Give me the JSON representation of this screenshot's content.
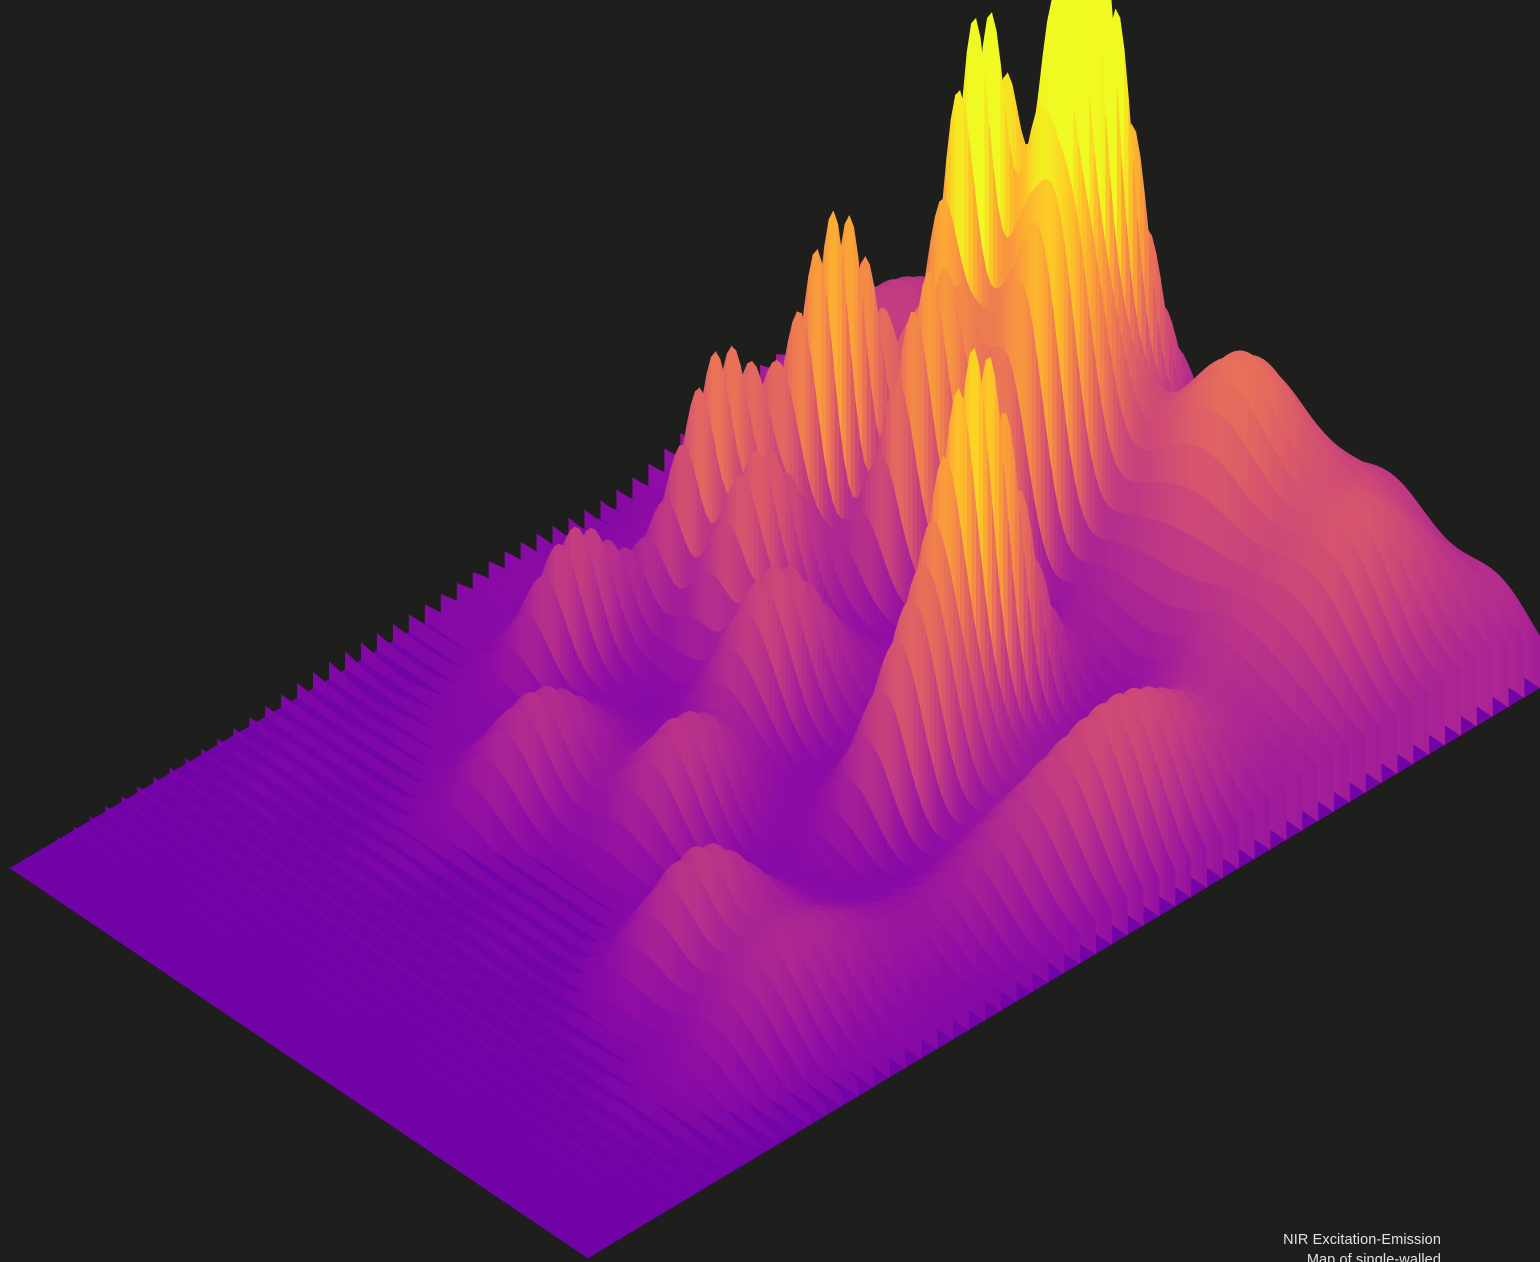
{
  "figure": {
    "caption_line_1": "NIR Excitation-Emission",
    "caption_line_2": "Map of single-walled",
    "colormap": [
      "#0d0887",
      "#41049d",
      "#6a00a8",
      "#8f0da4",
      "#b12a90",
      "#cc4778",
      "#e16462",
      "#f2844b",
      "#fca636",
      "#fcce25",
      "#f0f921"
    ],
    "background_color": "#1e1e1d"
  }
}
